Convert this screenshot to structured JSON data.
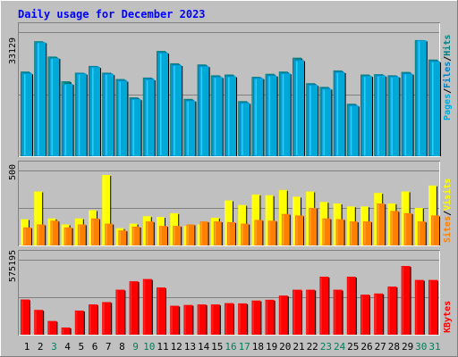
{
  "chart_data": {
    "type": "bar",
    "title": "Daily usage for December 2023",
    "categories": [
      "1",
      "2",
      "3",
      "4",
      "5",
      "6",
      "7",
      "8",
      "9",
      "10",
      "11",
      "12",
      "13",
      "14",
      "15",
      "16",
      "17",
      "18",
      "19",
      "20",
      "21",
      "22",
      "23",
      "24",
      "25",
      "26",
      "27",
      "28",
      "29",
      "30",
      "31"
    ],
    "weekend_days": [
      "3",
      "9",
      "10",
      "16",
      "17",
      "23",
      "24",
      "30",
      "31"
    ],
    "panels": [
      {
        "id": "hits",
        "ymax_label": "33129",
        "ylim": [
          0,
          33129
        ],
        "legend": [
          {
            "label": "Pages",
            "color": "#00a8d8"
          },
          {
            "label": "Files",
            "color": "#0080c0"
          },
          {
            "label": "Hits",
            "color": "#008080"
          }
        ],
        "series": [
          {
            "name": "Hits",
            "color": "#008080",
            "values": [
              22600,
              30700,
              26600,
              20000,
              22300,
              24100,
              22300,
              20600,
              15700,
              21000,
              28100,
              24800,
              15300,
              24500,
              21600,
              21800,
              14700,
              21200,
              22000,
              22600,
              26300,
              19500,
              18500,
              22900,
              14000,
              21800,
              21900,
              21600,
              22500,
              31000,
              25800
            ]
          },
          {
            "name": "Files",
            "color": "#0080c0",
            "values": [
              22300,
              30200,
              26000,
              19000,
              22200,
              24000,
              22100,
              20400,
              15400,
              20800,
              27800,
              24500,
              15000,
              24200,
              21300,
              21500,
              14400,
              21000,
              21700,
              22300,
              25800,
              19200,
              18200,
              22600,
              13700,
              21500,
              21700,
              21400,
              22200,
              31000,
              25500
            ]
          },
          {
            "name": "Pages",
            "color": "#00a8d8",
            "values": [
              22100,
              30400,
              26200,
              19300,
              22000,
              23800,
              21900,
              20100,
              15200,
              20500,
              27600,
              24300,
              14800,
              24000,
              21100,
              21300,
              14200,
              20800,
              21500,
              22100,
              25600,
              19000,
              18000,
              22400,
              13500,
              21400,
              21500,
              21200,
              22000,
              30900,
              25300
            ]
          }
        ]
      },
      {
        "id": "visits",
        "ymax_label": "500",
        "ylim": [
          0,
          500
        ],
        "legend": [
          {
            "label": "Sites",
            "color": "#ff8000"
          },
          {
            "label": "Visits",
            "color": "#ffff00"
          }
        ],
        "series": [
          {
            "name": "Visits",
            "color": "#ffff00",
            "values": [
              175,
              360,
              180,
              140,
              180,
              235,
              470,
              115,
              145,
              195,
              190,
              215,
              130,
              140,
              185,
              300,
              270,
              340,
              335,
              370,
              325,
              360,
              290,
              280,
              260,
              260,
              350,
              280,
              360,
              250,
              400
            ]
          },
          {
            "name": "Sites",
            "color": "#ff8000",
            "values": [
              120,
              140,
              165,
              120,
              140,
              180,
              145,
              100,
              125,
              160,
              130,
              130,
              140,
              160,
              160,
              155,
              145,
              170,
              165,
              210,
              200,
              250,
              180,
              175,
              160,
              160,
              280,
              230,
              215,
              160,
              200
            ]
          }
        ]
      },
      {
        "id": "kbytes",
        "ymax_label": "575195",
        "ylim": [
          0,
          575195
        ],
        "legend": [
          {
            "label": "KBytes",
            "color": "#ff0000"
          }
        ],
        "series": [
          {
            "name": "KBytes",
            "color": "#ff0000",
            "values": [
              270000,
              190000,
              105000,
              55000,
              185000,
              232000,
              250000,
              345000,
              410000,
              427000,
              362000,
              222000,
              228000,
              232000,
              232000,
              242000,
              240000,
              262000,
              268000,
              300000,
              345000,
              345000,
              445000,
              345000,
              445000,
              307000,
              316000,
              369000,
              527000,
              420000,
              420000
            ]
          }
        ]
      }
    ]
  },
  "colors": {
    "background": "#c0c0c0",
    "title": "#0000ff",
    "weekday_label": "#000000",
    "weekend_label": "#00805c",
    "legend_separator": "#000000"
  }
}
